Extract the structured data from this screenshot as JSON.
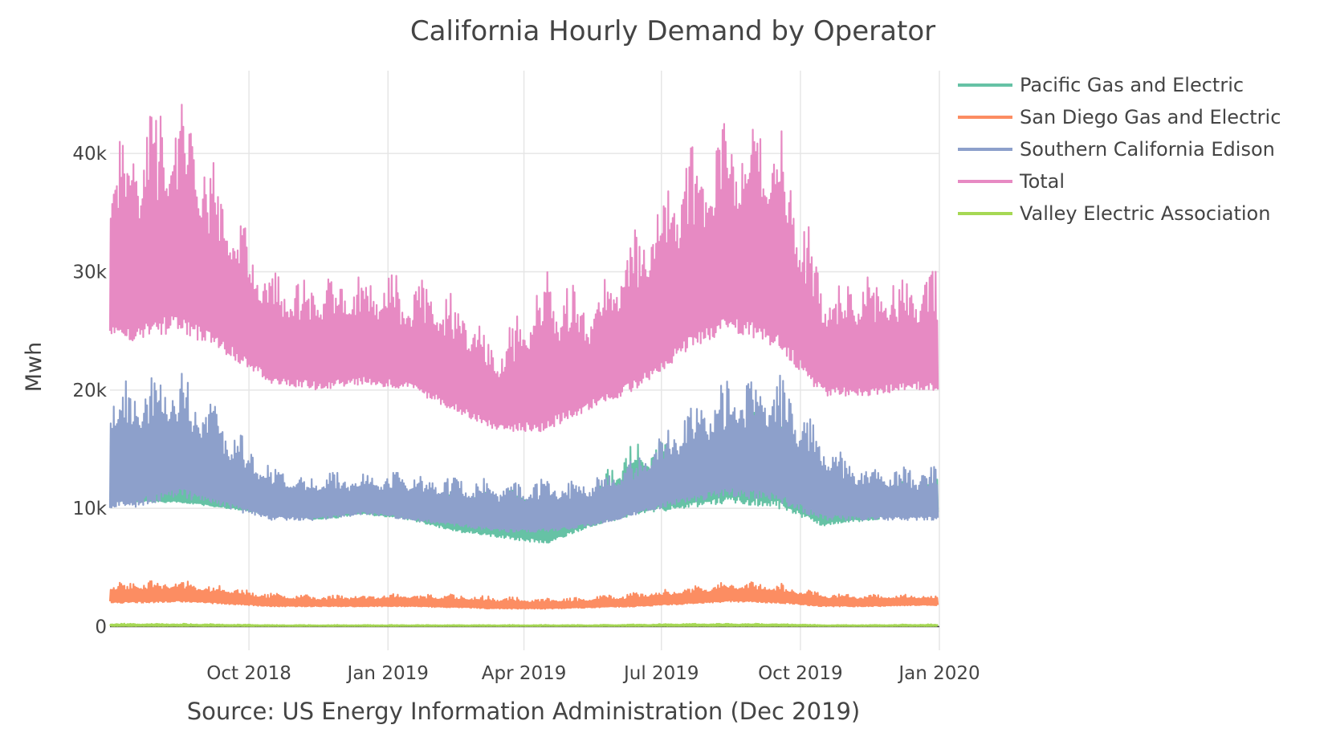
{
  "chart_data": {
    "type": "line",
    "title": "California Hourly Demand by Operator",
    "xlabel": "",
    "ylabel": "Mwh",
    "source_note": "Source: US Energy Information Administration (Dec 2019)",
    "x_range": [
      "2018-07-01",
      "2020-01-01"
    ],
    "ylim": [
      -2000,
      47000
    ],
    "grid": true,
    "legend_position": "top-right",
    "x_ticks": [
      {
        "date": "2018-10-01",
        "label": "Oct 2018"
      },
      {
        "date": "2019-01-01",
        "label": "Jan 2019"
      },
      {
        "date": "2019-04-01",
        "label": "Apr 2019"
      },
      {
        "date": "2019-07-01",
        "label": "Jul 2019"
      },
      {
        "date": "2019-10-01",
        "label": "Oct 2019"
      },
      {
        "date": "2020-01-01",
        "label": "Jan 2020"
      }
    ],
    "y_ticks": [
      {
        "value": 0,
        "label": "0"
      },
      {
        "value": 10000,
        "label": "10k"
      },
      {
        "value": 20000,
        "label": "20k"
      },
      {
        "value": 30000,
        "label": "30k"
      },
      {
        "value": 40000,
        "label": "40k"
      }
    ],
    "series_note": "Values are approximate daily [min, max] hourly demand ranges per month, read from the chart envelope.",
    "months": [
      "2018-07",
      "2018-08",
      "2018-09",
      "2018-10",
      "2018-11",
      "2018-12",
      "2019-01",
      "2019-02",
      "2019-03",
      "2019-04",
      "2019-05",
      "2019-06",
      "2019-07",
      "2019-08",
      "2019-09",
      "2019-10",
      "2019-11",
      "2019-12"
    ],
    "series": [
      {
        "name": "Pacific Gas and Electric",
        "color": "#66c2a5",
        "low": [
          10500,
          10500,
          10000,
          9500,
          9000,
          9500,
          9000,
          8000,
          7500,
          7000,
          8500,
          9500,
          10000,
          10500,
          10000,
          8500,
          9000,
          9500
        ],
        "high": [
          13000,
          12500,
          12000,
          11500,
          11500,
          11500,
          11500,
          11500,
          11500,
          11500,
          12000,
          16000,
          15000,
          18000,
          19000,
          12500,
          12000,
          12500
        ]
      },
      {
        "name": "San Diego Gas and Electric",
        "color": "#fc8d62",
        "low": [
          2000,
          2100,
          1900,
          1700,
          1700,
          1700,
          1700,
          1600,
          1500,
          1500,
          1600,
          1700,
          1900,
          2100,
          2000,
          1700,
          1700,
          1800
        ],
        "high": [
          3800,
          3900,
          3400,
          2800,
          2600,
          2700,
          2800,
          2700,
          2500,
          2400,
          2500,
          2900,
          3300,
          3800,
          3700,
          2800,
          2700,
          2700
        ]
      },
      {
        "name": "Southern California Edison",
        "color": "#8da0cb",
        "low": [
          10000,
          11000,
          10000,
          9000,
          9000,
          9500,
          9000,
          8500,
          8000,
          8000,
          8500,
          9500,
          10500,
          11000,
          10500,
          9000,
          9000,
          9000
        ],
        "high": [
          21000,
          22000,
          17500,
          13500,
          13000,
          13000,
          13000,
          12500,
          12500,
          12500,
          12500,
          14500,
          18000,
          21000,
          21500,
          16000,
          13500,
          13500
        ]
      },
      {
        "name": "Total",
        "color": "#e78ac3",
        "low": [
          24000,
          25000,
          23000,
          20500,
          20000,
          20500,
          20000,
          18000,
          16500,
          16500,
          18500,
          20000,
          23000,
          25000,
          23500,
          19500,
          19500,
          20000
        ],
        "high": [
          42000,
          45000,
          37000,
          30000,
          29500,
          30000,
          29500,
          28500,
          24000,
          30000,
          28000,
          34000,
          40000,
          43000,
          43000,
          29500,
          30000,
          30000
        ]
      },
      {
        "name": "Valley Electric Association",
        "color": "#a6d854",
        "low": [
          50,
          50,
          50,
          50,
          50,
          50,
          50,
          50,
          50,
          50,
          50,
          50,
          50,
          50,
          50,
          50,
          50,
          50
        ],
        "high": [
          250,
          250,
          200,
          150,
          150,
          150,
          150,
          150,
          150,
          150,
          150,
          200,
          250,
          250,
          250,
          150,
          150,
          200
        ]
      }
    ]
  }
}
